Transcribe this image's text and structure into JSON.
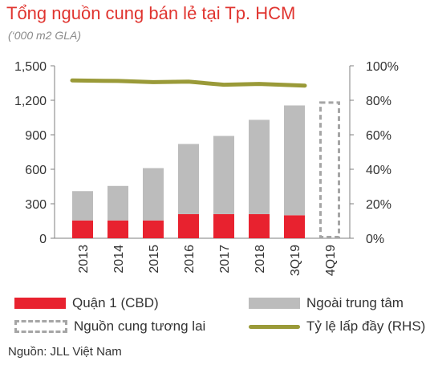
{
  "title": "Tổng nguồn cung bán lẻ tại Tp. HCM",
  "subtitle": "(‘000 m2 GLA)",
  "source": "Nguồn: JLL Việt Nam",
  "colors": {
    "cbd": "#e8222f",
    "outside": "#bcbcbc",
    "future": "#a5a5a5",
    "occupancy": "#9a9a38",
    "axis": "#7f7f7f",
    "title": "#e0342f"
  },
  "chart_data": {
    "type": "bar",
    "stacked": true,
    "categories": [
      "2013",
      "2014",
      "2015",
      "2016",
      "2017",
      "2018",
      "3Q19",
      "4Q19"
    ],
    "series": [
      {
        "name": "Quận 1 (CBD)",
        "axis": "left",
        "values": [
          155,
          155,
          155,
          210,
          210,
          210,
          200,
          null
        ]
      },
      {
        "name": "Ngoài trung tâm",
        "axis": "left",
        "values": [
          255,
          300,
          455,
          610,
          680,
          820,
          955,
          null
        ]
      },
      {
        "name": "Nguồn cung tương lai",
        "axis": "left",
        "style": "dashed-outline",
        "values": [
          null,
          null,
          null,
          null,
          null,
          null,
          null,
          1180
        ]
      },
      {
        "name": "Tỷ lệ lấp đầy (RHS)",
        "type": "line",
        "axis": "right",
        "unit": "%",
        "values": [
          91.5,
          91.2,
          90.5,
          90.8,
          89.0,
          89.5,
          88.5,
          null
        ]
      }
    ],
    "y_left": {
      "min": 0,
      "max": 1500,
      "ticks": [
        0,
        300,
        600,
        900,
        1200,
        1500
      ],
      "tick_labels": [
        "0",
        "300",
        "600",
        "900",
        "1,200",
        "1,500"
      ]
    },
    "y_right": {
      "min": 0,
      "max": 100,
      "ticks": [
        0,
        20,
        40,
        60,
        80,
        100
      ],
      "tick_labels": [
        "0%",
        "20%",
        "40%",
        "60%",
        "80%",
        "100%"
      ]
    },
    "grid": false,
    "legend_position": "bottom"
  },
  "legend": {
    "cbd": "Quận 1 (CBD)",
    "outside": "Ngoài trung tâm",
    "future": "Nguồn cung tương lai",
    "occupancy": "Tỷ lệ lấp đầy (RHS)"
  }
}
